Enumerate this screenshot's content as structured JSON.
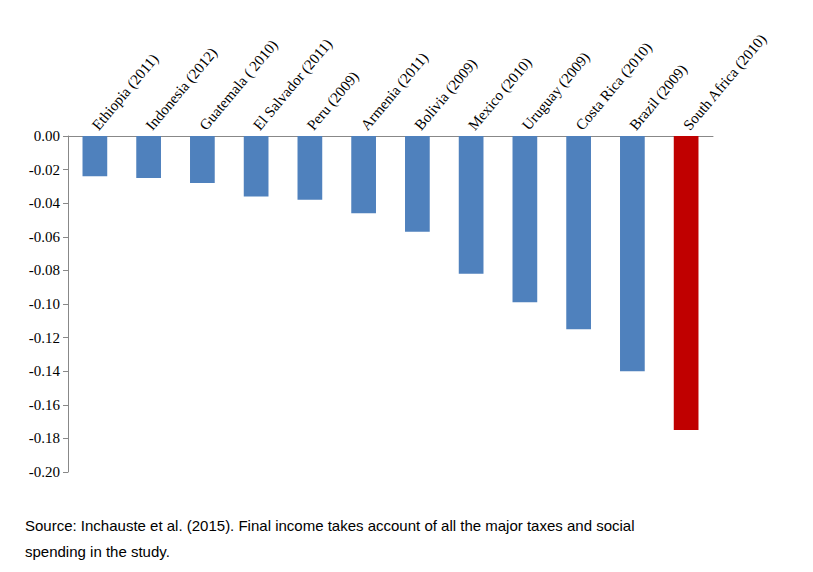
{
  "chart_data": {
    "type": "bar",
    "categories": [
      "Ethiopia (2011)",
      "Indonesia (2012)",
      "Guatemala ( 2010)",
      "El Salvador (2011)",
      "Peru (2009)",
      "Armenia (2011)",
      "Bolivia (2009)",
      "Mexico (2010)",
      "Uruguay (2009)",
      "Costa Rica (2010)",
      "Brazil (2009)",
      "South Africa (2010)"
    ],
    "values": [
      -0.024,
      -0.025,
      -0.028,
      -0.036,
      -0.038,
      -0.046,
      -0.057,
      -0.082,
      -0.099,
      -0.115,
      -0.14,
      -0.175
    ],
    "colors": [
      "#4f81bd",
      "#4f81bd",
      "#4f81bd",
      "#4f81bd",
      "#4f81bd",
      "#4f81bd",
      "#4f81bd",
      "#4f81bd",
      "#4f81bd",
      "#4f81bd",
      "#4f81bd",
      "#c00000"
    ],
    "ylim": [
      -0.2,
      0
    ],
    "yticks": [
      {
        "value": 0,
        "label": "0.00"
      },
      {
        "value": -0.02,
        "label": "-0.02"
      },
      {
        "value": -0.04,
        "label": "-0.04"
      },
      {
        "value": -0.06,
        "label": "-0.06"
      },
      {
        "value": -0.08,
        "label": "-0.08"
      },
      {
        "value": -0.1,
        "label": "-0.10"
      },
      {
        "value": -0.12,
        "label": "-0.12"
      },
      {
        "value": -0.14,
        "label": "-0.14"
      },
      {
        "value": -0.16,
        "label": "-0.16"
      },
      {
        "value": -0.18,
        "label": "-0.18"
      },
      {
        "value": -0.2,
        "label": "-0.20"
      }
    ],
    "annotations": [
      "Source: Inchauste et al. (2015). Final income takes account of all the major taxes and social",
      "spending in the study."
    ],
    "grid": false
  }
}
